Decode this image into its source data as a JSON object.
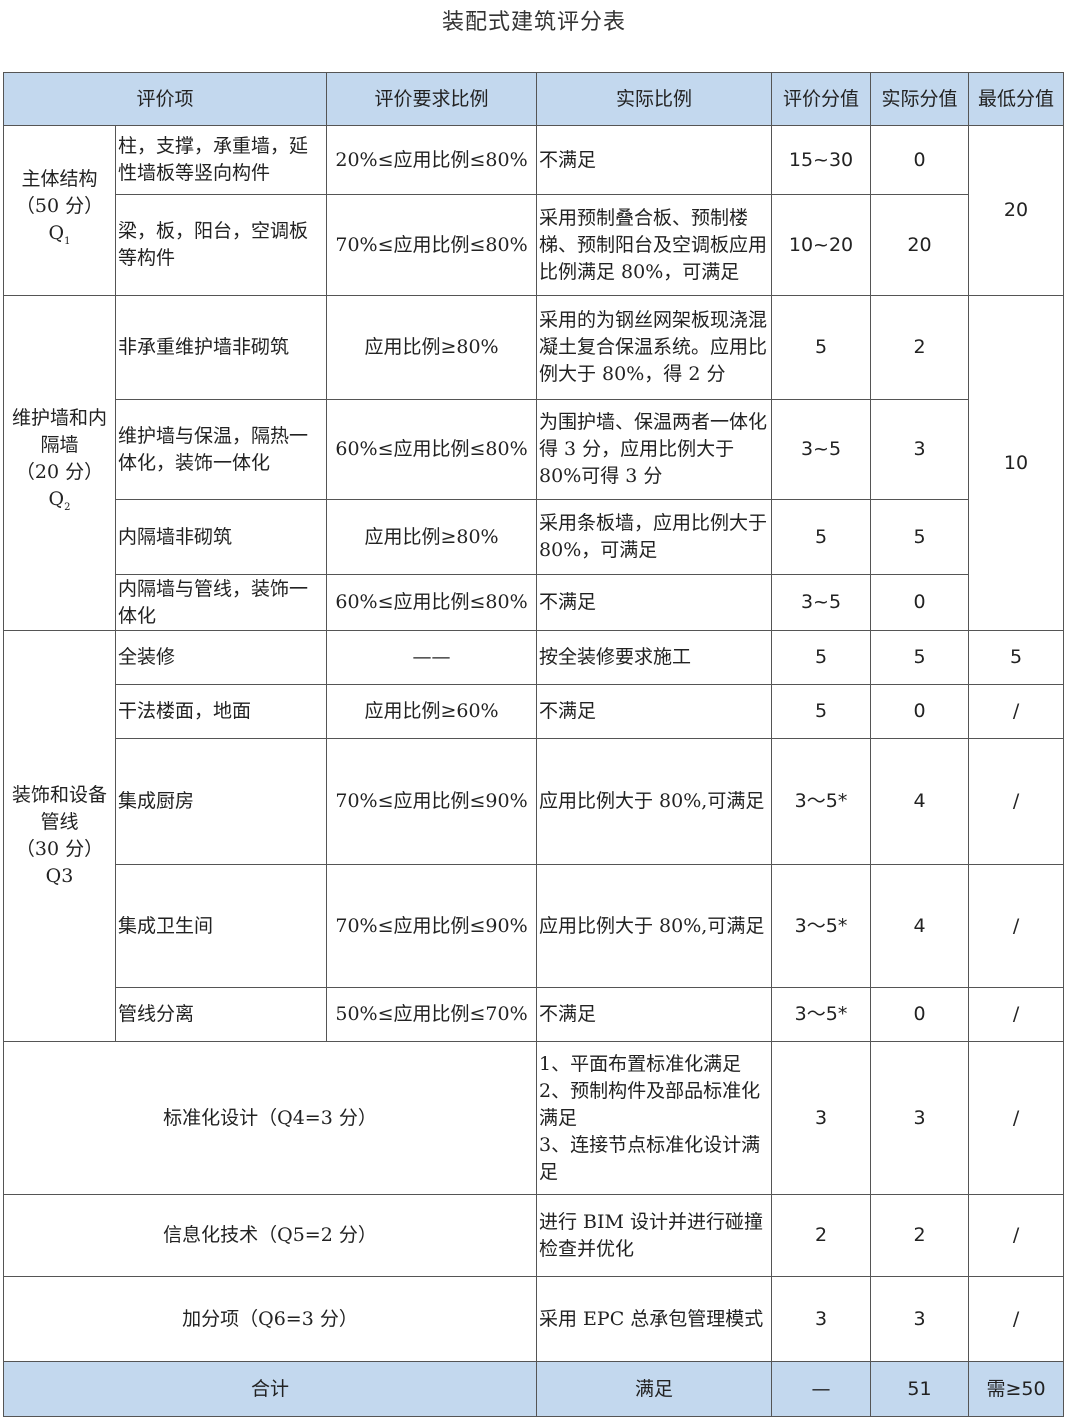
{
  "title": "装配式建筑评分表",
  "headers": [
    "评价项",
    "评价要求比例",
    "实际比例",
    "评价分值",
    "实际分值",
    "最低分值"
  ],
  "groups": [
    {
      "label": [
        "主体结构",
        "（50 分）"
      ],
      "q": "Q",
      "q_sub": "1",
      "min": "20",
      "rows": [
        {
          "item": "柱，支撑，承重墙，延性墙板等竖向构件",
          "req": "20%≤应用比例≤80%",
          "actual": "不满足",
          "score": "15~30",
          "real": "0"
        },
        {
          "item": "梁，板，阳台，空调板等构件",
          "req": "70%≤应用比例≤80%",
          "actual": "采用预制叠合板、预制楼梯、预制阳台及空调板应用比例满足 80%，可满足",
          "score": "10~20",
          "real": "20"
        }
      ]
    },
    {
      "label": [
        "维护墙和内隔墙",
        "（20 分）"
      ],
      "q": "Q",
      "q_sub": "2",
      "min": "10",
      "rows": [
        {
          "item": "非承重维护墙非砌筑",
          "req": "应用比例≥80%",
          "actual": "采用的为钢丝网架板现浇混凝土复合保温系统。应用比例大于 80%，得 2 分",
          "score": "5",
          "real": "2"
        },
        {
          "item": "维护墙与保温，隔热一体化，装饰一体化",
          "req": "60%≤应用比例≤80%",
          "actual": "为围护墙、保温两者一体化得 3 分，应用比例大于80%可得 3 分",
          "score": "3~5",
          "real": "3"
        },
        {
          "item": "内隔墙非砌筑",
          "req": "应用比例≥80%",
          "actual": "采用条板墙，应用比例大于 80%，可满足",
          "score": "5",
          "real": "5"
        },
        {
          "item": "内隔墙与管线，装饰一体化",
          "req": "60%≤应用比例≤80%",
          "actual": "不满足",
          "score": "3~5",
          "real": "0"
        }
      ]
    },
    {
      "label": [
        "装饰和设备管线",
        "（30 分）"
      ],
      "q": "Q3",
      "q_sub": "",
      "rows": [
        {
          "item": "全装修",
          "req": "——",
          "actual": "按全装修要求施工",
          "score": "5",
          "real": "5",
          "min": "5"
        },
        {
          "item": "干法楼面，地面",
          "req": "应用比例≥60%",
          "actual": "不满足",
          "score": "5",
          "real": "0",
          "min": "/"
        },
        {
          "item": "集成厨房",
          "req": "70%≤应用比例≤90%",
          "actual": "应用比例大于 80%,可满足",
          "score": "3～5*",
          "real": "4",
          "min": "/"
        },
        {
          "item": "集成卫生间",
          "req": "70%≤应用比例≤90%",
          "actual": "应用比例大于 80%,可满足",
          "score": "3～5*",
          "real": "4",
          "min": "/"
        },
        {
          "item": "管线分离",
          "req": "50%≤应用比例≤70%",
          "actual": "不满足",
          "score": "3～5*",
          "real": "0",
          "min": "/"
        }
      ]
    }
  ],
  "extras": [
    {
      "label": "标准化设计（Q4=3 分）",
      "actual_lines": [
        "1、平面布置标准化满足",
        "2、预制构件及部品标准化满足",
        "3、连接节点标准化设计满足"
      ],
      "score": "3",
      "real": "3",
      "min": "/"
    },
    {
      "label": "信息化技术（Q5=2 分）",
      "actual_lines": [
        "进行 BIM 设计并进行碰撞检查并优化"
      ],
      "score": "2",
      "real": "2",
      "min": "/"
    },
    {
      "label": "加分项（Q6=3 分）",
      "actual_lines": [
        "采用 EPC 总承包管理模式"
      ],
      "score": "3",
      "real": "3",
      "min": "/"
    }
  ],
  "total": {
    "label": "合计",
    "actual": "满足",
    "score": "—",
    "real": "51",
    "min": "需≥50"
  },
  "colors": {
    "header_bg": "#c3d8ee",
    "border": "#555555"
  }
}
